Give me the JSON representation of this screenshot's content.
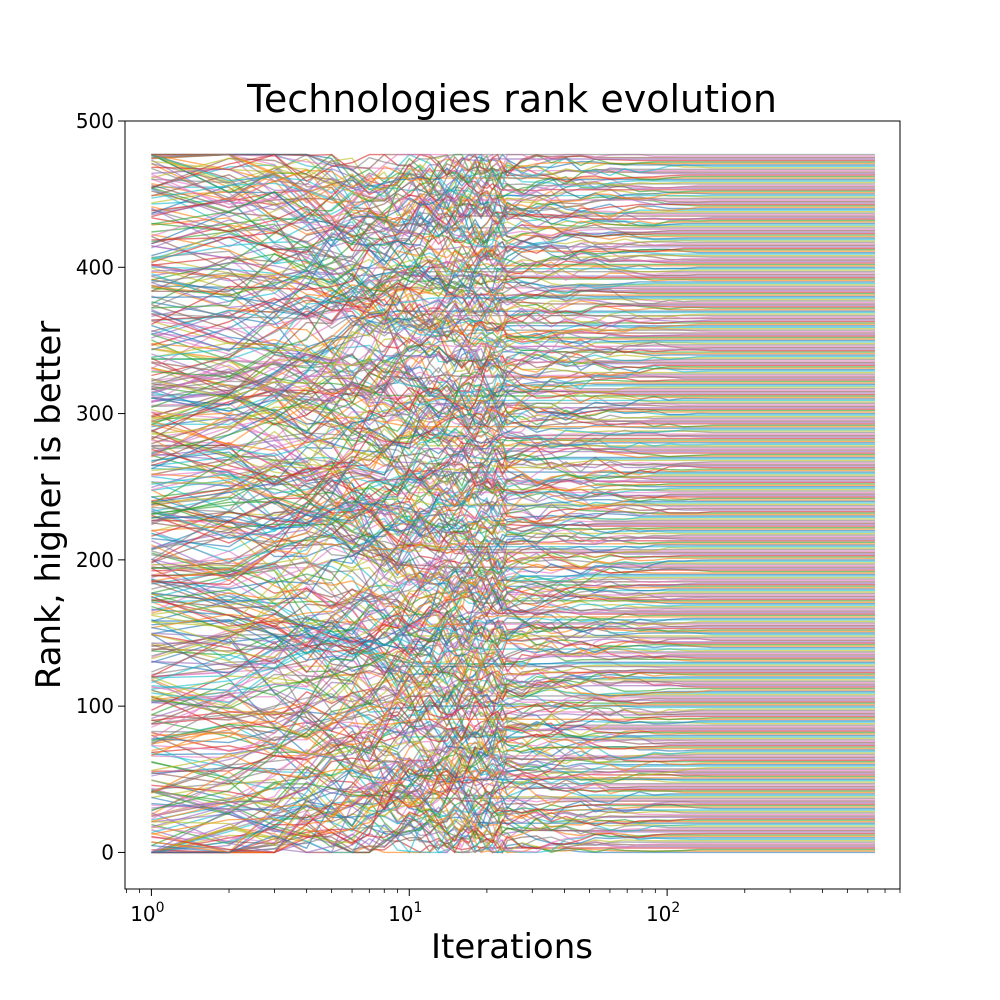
{
  "chart_data": {
    "type": "line",
    "title": "Technologies rank evolution",
    "xlabel": "Iterations",
    "ylabel": "Rank, higher is better",
    "x_scale": "log",
    "x_range": [
      1,
      640
    ],
    "xlim": [
      0.79,
      800
    ],
    "ylim": [
      -25,
      500
    ],
    "grid": false,
    "legend": "none",
    "y_ticks": [
      0,
      100,
      200,
      300,
      400,
      500
    ],
    "x_ticks": [
      {
        "value": 1,
        "base": "10",
        "exp": "0"
      },
      {
        "value": 10,
        "base": "10",
        "exp": "1"
      },
      {
        "value": 100,
        "base": "10",
        "exp": "2"
      }
    ],
    "series_count": 478,
    "rank_range": [
      0,
      477
    ],
    "colors": [
      "#1f77b4",
      "#ff7f0e",
      "#2ca02c",
      "#d62728",
      "#9467bd",
      "#8c564b",
      "#e377c2",
      "#7f7f7f",
      "#bcbd22",
      "#17becf"
    ],
    "line_alpha": 0.6
  }
}
